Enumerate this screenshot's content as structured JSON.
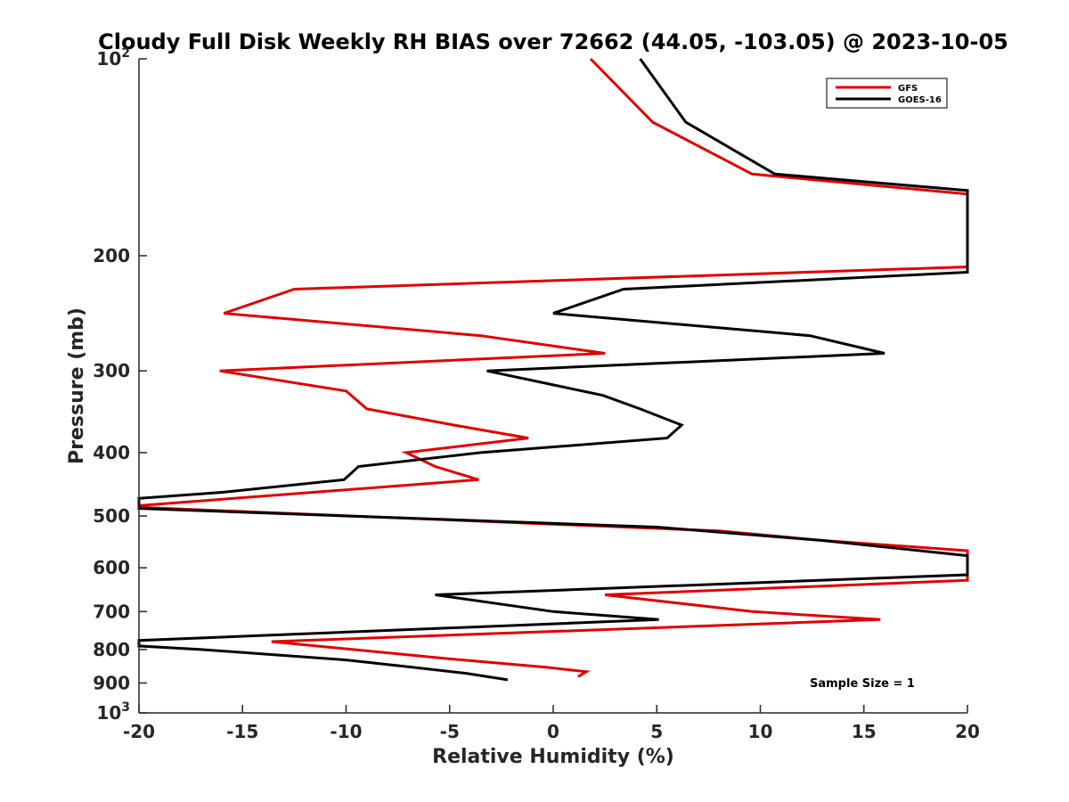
{
  "chart_data": {
    "type": "line",
    "title": "Cloudy Full Disk Weekly RH BIAS over 72662 (44.05, -103.05) @ 2023-10-05",
    "xlabel": "Relative Humidity (%)",
    "ylabel": "Pressure (mb)",
    "xlim": [
      -20,
      20
    ],
    "ylim": [
      100,
      1000
    ],
    "y_scale": "log",
    "y_reversed": true,
    "grid": false,
    "legend_position": "top-right",
    "x_ticks": [
      "-20",
      "-15",
      "-10",
      "-5",
      "0",
      "5",
      "10",
      "15",
      "20"
    ],
    "y_ticks": [
      {
        "value": 100,
        "base": "10",
        "exp": "2"
      },
      {
        "value": 200,
        "label": "200"
      },
      {
        "value": 300,
        "label": "300"
      },
      {
        "value": 400,
        "label": "400"
      },
      {
        "value": 500,
        "label": "500"
      },
      {
        "value": 600,
        "label": "600"
      },
      {
        "value": 700,
        "label": "700"
      },
      {
        "value": 800,
        "label": "800"
      },
      {
        "value": 900,
        "label": "900"
      },
      {
        "value": 1000,
        "base": "10",
        "exp": "3"
      }
    ],
    "annotation": "Sample Size = 1",
    "series": [
      {
        "name": "GFS",
        "color": "#e00000",
        "points": [
          [
            1.8,
            100
          ],
          [
            4.8,
            125
          ],
          [
            9.6,
            150
          ],
          [
            20,
            161
          ],
          [
            20,
            208
          ],
          [
            -12.5,
            225
          ],
          [
            -15.9,
            245
          ],
          [
            -3.5,
            265
          ],
          [
            2.5,
            282
          ],
          [
            -16.1,
            300
          ],
          [
            -10.0,
            322
          ],
          [
            -9.0,
            343
          ],
          [
            -4.8,
            363
          ],
          [
            -1.2,
            380
          ],
          [
            -7.1,
            400
          ],
          [
            -5.7,
            420
          ],
          [
            -3.6,
            440
          ],
          [
            -20,
            482
          ],
          [
            -20,
            485
          ],
          [
            8,
            527
          ],
          [
            13,
            545
          ],
          [
            20,
            565
          ],
          [
            20,
            627
          ],
          [
            2.5,
            660
          ],
          [
            9.6,
            700
          ],
          [
            15.8,
            720
          ],
          [
            -13.6,
            778
          ],
          [
            -5,
            827
          ],
          [
            -0.3,
            852
          ],
          [
            1.6,
            865
          ],
          [
            1.2,
            880
          ]
        ]
      },
      {
        "name": "GOES-16",
        "color": "#000000",
        "points": [
          [
            4.2,
            100
          ],
          [
            6.4,
            125
          ],
          [
            10.7,
            150
          ],
          [
            20,
            159
          ],
          [
            20,
            212
          ],
          [
            3.4,
            225
          ],
          [
            0,
            245
          ],
          [
            12.4,
            265
          ],
          [
            16.0,
            282
          ],
          [
            -3.2,
            300
          ],
          [
            2.4,
            327
          ],
          [
            4.2,
            343
          ],
          [
            6.2,
            363
          ],
          [
            5.5,
            380
          ],
          [
            -3.5,
            400
          ],
          [
            -9.4,
            420
          ],
          [
            -10.1,
            440
          ],
          [
            -16.0,
            460
          ],
          [
            -20,
            470
          ],
          [
            -20,
            487
          ],
          [
            5.0,
            520
          ],
          [
            13.0,
            545
          ],
          [
            20,
            575
          ],
          [
            20,
            615
          ],
          [
            -5.7,
            660
          ],
          [
            0,
            700
          ],
          [
            5.1,
            720
          ],
          [
            -20,
            775
          ],
          [
            -20,
            790
          ],
          [
            -17,
            800
          ],
          [
            -10,
            830
          ],
          [
            -7,
            850
          ],
          [
            -4.2,
            870
          ],
          [
            -2.2,
            890
          ]
        ]
      }
    ]
  }
}
